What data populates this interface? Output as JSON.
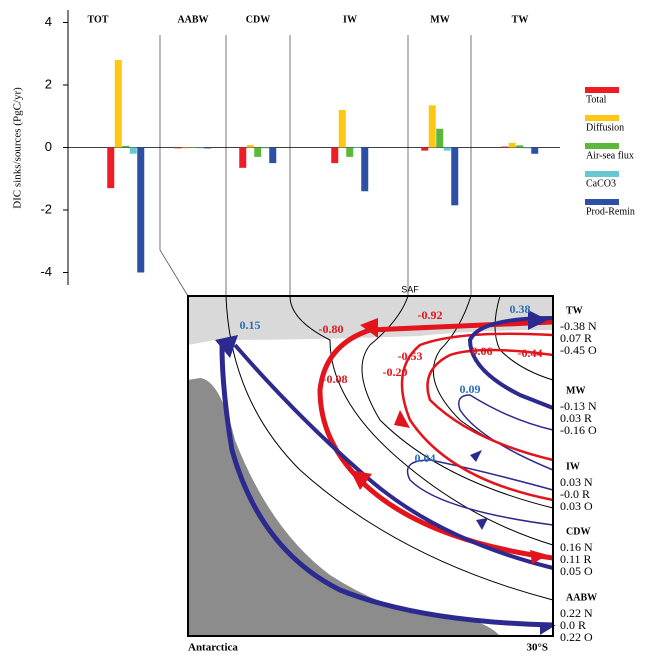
{
  "chart_data": {
    "type": "bar",
    "y_label": "DIC sinks/sources (PgC/yr)",
    "categories": [
      "TOT",
      "AABW",
      "CDW",
      "IW",
      "MW",
      "TW"
    ],
    "series": [
      {
        "name": "Total",
        "color": "#ee1c25",
        "values": [
          -1.3,
          -0.02,
          -0.65,
          -0.5,
          -0.1,
          0.03
        ]
      },
      {
        "name": "Diffusion",
        "color": "#fcc813",
        "values": [
          2.8,
          -0.02,
          0.08,
          1.2,
          1.35,
          0.15
        ]
      },
      {
        "name": "Air-sea flux",
        "color": "#5cb83a",
        "values": [
          0.05,
          0.01,
          -0.3,
          -0.3,
          0.6,
          0.07
        ]
      },
      {
        "name": "CaCO3",
        "color": "#66c8d0",
        "values": [
          -0.2,
          -0.02,
          -0.02,
          0.02,
          -0.1,
          -0.02
        ]
      },
      {
        "name": "Prod-Remin",
        "color": "#2d4fa5",
        "values": [
          -4.0,
          -0.03,
          -0.5,
          -1.4,
          -1.85,
          -0.2
        ]
      }
    ],
    "ylim": [
      -4.4,
      4.4
    ],
    "yticks": [
      -4,
      -2,
      0,
      2,
      4
    ]
  },
  "diagram": {
    "front_label": "SAF",
    "transport_labels": [
      {
        "text": "0.15",
        "color": "#2a6ebb"
      },
      {
        "text": "-0.80",
        "color": "#e3141b"
      },
      {
        "text": "-0.92",
        "color": "#e3141b"
      },
      {
        "text": "0.38",
        "color": "#2a6ebb"
      },
      {
        "text": "-0.53",
        "color": "#e3141b"
      },
      {
        "text": "-0.06",
        "color": "#e3141b"
      },
      {
        "text": "-0.44",
        "color": "#e3141b"
      },
      {
        "text": "-0.20",
        "color": "#e3141b"
      },
      {
        "text": "-0.08",
        "color": "#e3141b"
      },
      {
        "text": "0.09",
        "color": "#2a6ebb"
      },
      {
        "text": "0.04",
        "color": "#2a6ebb"
      }
    ],
    "water_masses": [
      {
        "name": "TW",
        "lines": [
          "-0.38 N",
          "0.07 R",
          "-0.45 O"
        ]
      },
      {
        "name": "MW",
        "lines": [
          "-0.13 N",
          "0.03 R",
          "-0.16 O"
        ]
      },
      {
        "name": "IW",
        "lines": [
          "0.03 N",
          "-0.0 R",
          "0.03 O"
        ]
      },
      {
        "name": "CDW",
        "lines": [
          "0.16 N",
          "0.11 R",
          "0.05 O"
        ]
      },
      {
        "name": "AABW",
        "lines": [
          "0.22 N",
          "0.0 R",
          "0.22 O"
        ]
      }
    ],
    "left_label": "Antarctica",
    "right_label": "30°S"
  }
}
